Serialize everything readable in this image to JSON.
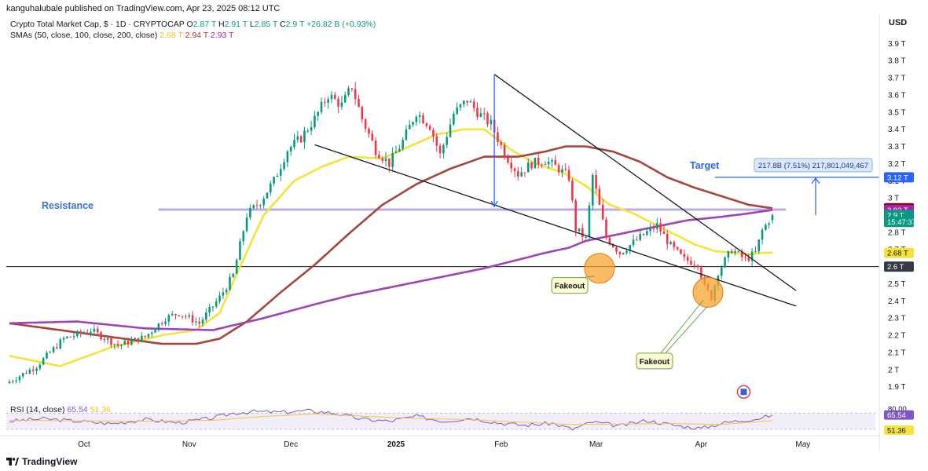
{
  "publisher": "kanguhalubale published on TradingView.com, Apr 23, 2025 08:12 UTC",
  "legend": {
    "title": "Crypto Total Market Cap, $ · 1D · CRYPTOCAP",
    "o_label": "O",
    "o_value": "2.87 T",
    "h_label": "H",
    "h_value": "2.91 T",
    "l_label": "L",
    "l_value": "2.85 T",
    "c_label": "C",
    "c_value": "2.9 T",
    "change": "+26.82 B (+0.93%)",
    "sma_title": "SMAs (50, close, 100, close, 200, close)",
    "sma50_value": "2.68 T",
    "sma100_value": "2.94 T",
    "sma200_value": "2.93 T"
  },
  "currency": "USD",
  "rsi_legend": {
    "title": "RSI (14, close)",
    "rsi_value": "65.54",
    "rsi_sma_value": "51.36"
  },
  "brand": "TradingView",
  "colors": {
    "up": "#089981",
    "down": "#f23645",
    "sma50": "#f5e33a",
    "sma100": "#a5453d",
    "sma200": "#9c45b8",
    "resistance": "#b39ddb",
    "blue": "#2962ff",
    "fakeout": "#f7a531"
  },
  "chart_data": {
    "type": "candlestick",
    "title": "Crypto Total Market Cap, $ · 1D · CRYPTOCAP",
    "y_unit": "T (trillion USD)",
    "ylim": [
      1.83,
      3.97
    ],
    "y_ticks": [
      "1.9 T",
      "2 T",
      "2.1 T",
      "2.2 T",
      "2.3 T",
      "2.4 T",
      "2.5 T",
      "2.6 T",
      "2.7 T",
      "2.8 T",
      "2.9 T",
      "3 T",
      "3.1 T",
      "3.2 T",
      "3.3 T",
      "3.4 T",
      "3.5 T",
      "3.6 T",
      "3.7 T",
      "3.8 T",
      "3.9 T"
    ],
    "y_tick_values": [
      1.9,
      2.0,
      2.1,
      2.2,
      2.3,
      2.4,
      2.5,
      2.6,
      2.7,
      2.8,
      2.9,
      3.0,
      3.1,
      3.2,
      3.3,
      3.4,
      3.5,
      3.6,
      3.7,
      3.8,
      3.9
    ],
    "x_labels": [
      "Oct",
      "Nov",
      "Dec",
      "2025",
      "Feb",
      "Mar",
      "Apr",
      "May"
    ],
    "x_label_days": [
      22,
      53,
      83,
      114,
      145,
      173,
      204,
      234
    ],
    "first_day": "2024-09-09",
    "num_days": 226,
    "close_anchors": [
      [
        0,
        1.93
      ],
      [
        8,
        2.02
      ],
      [
        16,
        2.18
      ],
      [
        24,
        2.23
      ],
      [
        32,
        2.14
      ],
      [
        40,
        2.19
      ],
      [
        46,
        2.3
      ],
      [
        50,
        2.33
      ],
      [
        56,
        2.27
      ],
      [
        62,
        2.42
      ],
      [
        66,
        2.55
      ],
      [
        70,
        2.9
      ],
      [
        74,
        2.98
      ],
      [
        78,
        3.1
      ],
      [
        82,
        3.28
      ],
      [
        86,
        3.35
      ],
      [
        90,
        3.46
      ],
      [
        94,
        3.6
      ],
      [
        98,
        3.54
      ],
      [
        101,
        3.65
      ],
      [
        104,
        3.46
      ],
      [
        108,
        3.28
      ],
      [
        112,
        3.2
      ],
      [
        116,
        3.33
      ],
      [
        120,
        3.5
      ],
      [
        124,
        3.42
      ],
      [
        127,
        3.25
      ],
      [
        131,
        3.49
      ],
      [
        135,
        3.57
      ],
      [
        139,
        3.48
      ],
      [
        142,
        3.43
      ],
      [
        146,
        3.26
      ],
      [
        150,
        3.14
      ],
      [
        154,
        3.2
      ],
      [
        158,
        3.22
      ],
      [
        162,
        3.17
      ],
      [
        165,
        3.12
      ],
      [
        167,
        2.82
      ],
      [
        170,
        2.76
      ],
      [
        172,
        3.13
      ],
      [
        176,
        2.77
      ],
      [
        180,
        2.68
      ],
      [
        184,
        2.74
      ],
      [
        188,
        2.8
      ],
      [
        191,
        2.84
      ],
      [
        195,
        2.72
      ],
      [
        199,
        2.64
      ],
      [
        203,
        2.62
      ],
      [
        205,
        2.48
      ],
      [
        207,
        2.42
      ],
      [
        209,
        2.57
      ],
      [
        213,
        2.7
      ],
      [
        217,
        2.64
      ],
      [
        220,
        2.68
      ],
      [
        222,
        2.81
      ],
      [
        225,
        2.9
      ]
    ],
    "last_candle": {
      "open": 2.87,
      "high": 2.91,
      "low": 2.85,
      "close": 2.9
    },
    "series": [
      {
        "name": "SMA 50",
        "value_now": 2.68,
        "points": [
          [
            0,
            2.08
          ],
          [
            15,
            2.02
          ],
          [
            30,
            2.13
          ],
          [
            45,
            2.2
          ],
          [
            55,
            2.23
          ],
          [
            62,
            2.33
          ],
          [
            68,
            2.6
          ],
          [
            75,
            2.9
          ],
          [
            84,
            3.1
          ],
          [
            92,
            3.18
          ],
          [
            100,
            3.24
          ],
          [
            110,
            3.23
          ],
          [
            118,
            3.3
          ],
          [
            126,
            3.37
          ],
          [
            134,
            3.4
          ],
          [
            140,
            3.4
          ],
          [
            148,
            3.28
          ],
          [
            155,
            3.2
          ],
          [
            163,
            3.15
          ],
          [
            170,
            3.07
          ],
          [
            177,
            2.96
          ],
          [
            184,
            2.91
          ],
          [
            190,
            2.85
          ],
          [
            196,
            2.79
          ],
          [
            202,
            2.73
          ],
          [
            208,
            2.69
          ],
          [
            214,
            2.68
          ],
          [
            218,
            2.67
          ],
          [
            222,
            2.68
          ],
          [
            225,
            2.68
          ]
        ]
      },
      {
        "name": "SMA 100",
        "value_now": 2.94,
        "points": [
          [
            0,
            2.27
          ],
          [
            15,
            2.23
          ],
          [
            30,
            2.19
          ],
          [
            45,
            2.15
          ],
          [
            55,
            2.15
          ],
          [
            62,
            2.18
          ],
          [
            70,
            2.28
          ],
          [
            80,
            2.45
          ],
          [
            90,
            2.61
          ],
          [
            100,
            2.79
          ],
          [
            110,
            2.96
          ],
          [
            120,
            3.08
          ],
          [
            130,
            3.17
          ],
          [
            140,
            3.24
          ],
          [
            150,
            3.24
          ],
          [
            158,
            3.27
          ],
          [
            164,
            3.3
          ],
          [
            170,
            3.3
          ],
          [
            178,
            3.27
          ],
          [
            186,
            3.21
          ],
          [
            194,
            3.12
          ],
          [
            202,
            3.06
          ],
          [
            210,
            3.01
          ],
          [
            218,
            2.96
          ],
          [
            225,
            2.94
          ]
        ]
      },
      {
        "name": "SMA 200",
        "value_now": 2.93,
        "points": [
          [
            0,
            2.27
          ],
          [
            20,
            2.28
          ],
          [
            40,
            2.24
          ],
          [
            60,
            2.23
          ],
          [
            75,
            2.3
          ],
          [
            90,
            2.38
          ],
          [
            100,
            2.43
          ],
          [
            110,
            2.47
          ],
          [
            120,
            2.51
          ],
          [
            130,
            2.55
          ],
          [
            140,
            2.59
          ],
          [
            150,
            2.64
          ],
          [
            158,
            2.68
          ],
          [
            165,
            2.71
          ],
          [
            170,
            2.75
          ],
          [
            180,
            2.79
          ],
          [
            190,
            2.83
          ],
          [
            200,
            2.87
          ],
          [
            210,
            2.89
          ],
          [
            218,
            2.91
          ],
          [
            225,
            2.93
          ]
        ]
      }
    ],
    "annotations": {
      "resistance_label": "Resistance",
      "resistance_level": 2.932,
      "support_value": 2.6,
      "support_label": "2.6 T",
      "target_label": "Target",
      "target_value": 3.12,
      "target_tag": "3.12 T",
      "measure_label": "217.8B (7.51%) 217,801,049,467",
      "fakeout_labels": [
        "Fakeout",
        "Fakeout"
      ],
      "upper_wedge_line": [
        [
          143,
          3.72
        ],
        [
          232,
          2.46
        ]
      ],
      "lower_wedge_line": [
        [
          90,
          3.31
        ],
        [
          232,
          2.37
        ]
      ],
      "pole_day": 143,
      "pole_from": 3.72,
      "pole_to": 2.95,
      "fakeout_circles": [
        [
          174,
          2.59
        ],
        [
          206,
          2.45
        ]
      ]
    },
    "price_tags": [
      {
        "text": "2.94 T",
        "value": 2.94,
        "color": "#8b0000",
        "text_color": "#ffffff"
      },
      {
        "text": "2.93 T",
        "value": 2.93,
        "color": "#9c27b0",
        "text_color": "#ffffff"
      },
      {
        "text": "2.9 T",
        "value": 2.9,
        "color": "#089981",
        "text_color": "#ffffff"
      },
      {
        "text": "15:47:37",
        "value": 2.86,
        "color": "#089981",
        "text_color": "#ffffff"
      },
      {
        "text": "2.68 T",
        "value": 2.68,
        "color": "#f5e33a",
        "text_color": "#131722"
      },
      {
        "text": "2.6 T",
        "value": 2.6,
        "color": "#363a45",
        "text_color": "#ffffff"
      },
      {
        "text": "3.12 T",
        "value": 3.12,
        "color": "#2962ff",
        "text_color": "#ffffff"
      }
    ],
    "rsi": {
      "title": "RSI (14, close)",
      "value": 65.54,
      "sma_value": 51.36,
      "ticks": [
        "80.00"
      ],
      "rsi_tag": "65.54",
      "sma_tag": "51.36",
      "anchors": [
        [
          0,
          50
        ],
        [
          10,
          56
        ],
        [
          20,
          50
        ],
        [
          30,
          44
        ],
        [
          40,
          54
        ],
        [
          50,
          46
        ],
        [
          60,
          58
        ],
        [
          66,
          70
        ],
        [
          72,
          74
        ],
        [
          80,
          72
        ],
        [
          88,
          76
        ],
        [
          96,
          70
        ],
        [
          104,
          55
        ],
        [
          112,
          50
        ],
        [
          120,
          62
        ],
        [
          128,
          50
        ],
        [
          136,
          58
        ],
        [
          144,
          46
        ],
        [
          152,
          40
        ],
        [
          160,
          45
        ],
        [
          166,
          30
        ],
        [
          172,
          48
        ],
        [
          180,
          38
        ],
        [
          188,
          52
        ],
        [
          196,
          40
        ],
        [
          204,
          32
        ],
        [
          210,
          45
        ],
        [
          216,
          52
        ],
        [
          222,
          58
        ],
        [
          225,
          65.54
        ]
      ],
      "sma_anchors": [
        [
          0,
          52
        ],
        [
          20,
          51
        ],
        [
          40,
          50
        ],
        [
          60,
          52
        ],
        [
          75,
          62
        ],
        [
          90,
          68
        ],
        [
          105,
          62
        ],
        [
          120,
          57
        ],
        [
          135,
          54
        ],
        [
          150,
          48
        ],
        [
          165,
          42
        ],
        [
          180,
          43
        ],
        [
          195,
          44
        ],
        [
          210,
          42
        ],
        [
          225,
          51.36
        ]
      ]
    }
  }
}
